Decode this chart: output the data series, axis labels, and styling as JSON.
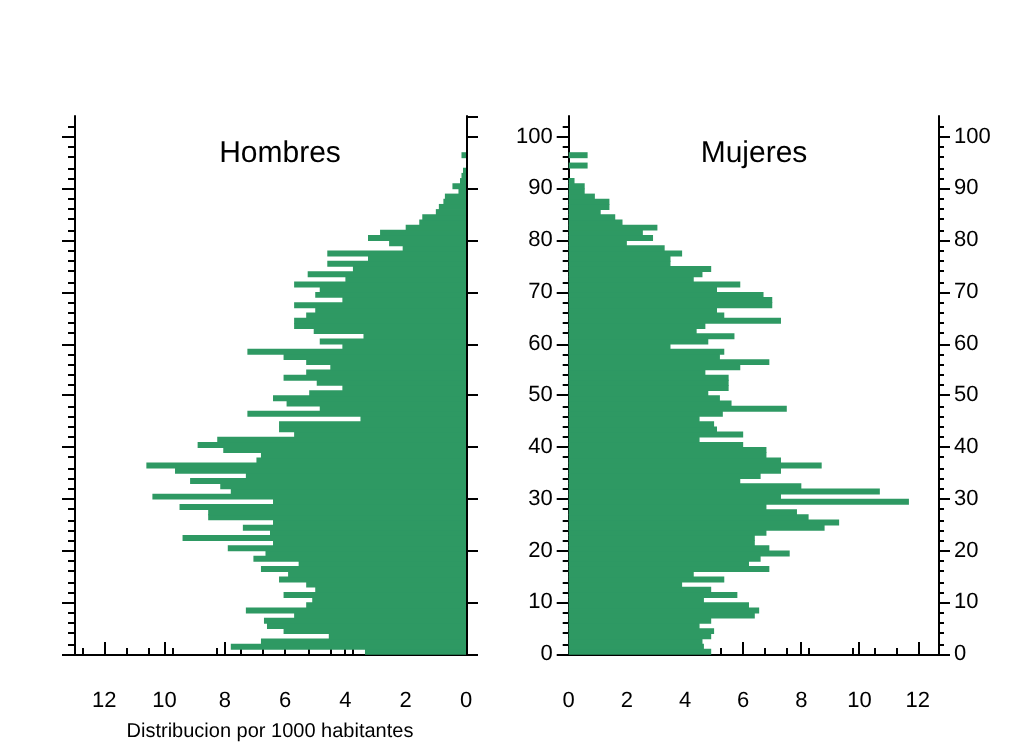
{
  "chart_data": [
    {
      "type": "bar",
      "orientation": "horizontal",
      "title": "Hombres",
      "xlabel": "Distribucion por 1000 habitantes",
      "color": "#2e9963",
      "tick_labels": "x",
      "x": [
        0,
        1,
        2,
        3,
        4,
        5,
        6,
        7,
        8,
        9,
        10,
        11,
        12,
        13,
        14,
        15,
        16,
        17,
        18,
        19,
        20,
        21,
        22,
        23,
        24,
        25,
        26,
        27,
        28,
        29,
        30,
        31,
        32,
        33,
        34,
        35,
        36,
        37,
        38,
        39,
        40,
        41,
        42,
        43,
        44,
        45,
        46,
        47,
        48,
        49,
        50,
        51,
        52,
        53,
        54,
        55,
        56,
        57,
        58,
        59,
        60,
        61,
        62,
        63,
        64,
        65,
        66,
        67,
        68,
        69,
        70,
        71,
        72,
        73,
        74,
        75,
        76,
        77,
        78,
        79,
        80,
        81,
        82,
        83,
        84,
        85,
        86,
        87,
        88,
        89,
        90,
        91,
        92,
        93,
        94,
        95,
        96
      ],
      "values": [
        3.35,
        7.8,
        6.8,
        4.55,
        6.05,
        6.6,
        6.7,
        5.7,
        7.3,
        5.3,
        5.1,
        6.05,
        5.0,
        5.3,
        6.2,
        5.9,
        6.8,
        5.55,
        7.05,
        6.65,
        7.9,
        6.4,
        9.4,
        6.5,
        7.4,
        6.4,
        8.55,
        8.55,
        9.5,
        6.4,
        10.4,
        7.8,
        8.15,
        9.15,
        7.3,
        9.65,
        10.6,
        6.95,
        6.8,
        8.05,
        8.9,
        8.25,
        5.7,
        6.2,
        6.2,
        3.5,
        7.25,
        4.85,
        5.95,
        6.4,
        5.2,
        4.1,
        4.95,
        6.05,
        5.3,
        4.5,
        5.3,
        6.05,
        7.25,
        4.1,
        4.85,
        3.4,
        5.05,
        5.7,
        5.7,
        5.3,
        5.0,
        5.7,
        4.1,
        5.0,
        4.85,
        5.7,
        4.0,
        5.25,
        3.75,
        4.6,
        3.25,
        4.6,
        2.1,
        2.55,
        3.25,
        2.85,
        2.0,
        1.55,
        1.45,
        1.0,
        0.9,
        0.75,
        0.7,
        0.25,
        0.45,
        0.2,
        0.15,
        0.1,
        0,
        0,
        0.15
      ],
      "xlim": [
        13,
        0
      ],
      "xticks": [
        12,
        10,
        8,
        6,
        4,
        2,
        0
      ],
      "ylim": [
        0,
        104
      ],
      "yticks": [
        0,
        10,
        20,
        30,
        40,
        50,
        60,
        70,
        80,
        90,
        100
      ]
    },
    {
      "type": "bar",
      "orientation": "horizontal",
      "title": "Mujeres",
      "color": "#2e9963",
      "x": [
        0,
        1,
        2,
        3,
        4,
        5,
        6,
        7,
        8,
        9,
        10,
        11,
        12,
        13,
        14,
        15,
        16,
        17,
        18,
        19,
        20,
        21,
        22,
        23,
        24,
        25,
        26,
        27,
        28,
        29,
        30,
        31,
        32,
        33,
        34,
        35,
        36,
        37,
        38,
        39,
        40,
        41,
        42,
        43,
        44,
        45,
        46,
        47,
        48,
        49,
        50,
        51,
        52,
        53,
        54,
        55,
        56,
        57,
        58,
        59,
        60,
        61,
        62,
        63,
        64,
        65,
        66,
        67,
        68,
        69,
        70,
        71,
        72,
        73,
        74,
        75,
        76,
        77,
        78,
        79,
        80,
        81,
        82,
        83,
        84,
        85,
        86,
        87,
        88,
        89,
        90,
        91,
        92,
        93,
        94,
        95,
        96
      ],
      "values": [
        4.9,
        4.65,
        4.6,
        4.9,
        5.0,
        4.5,
        4.9,
        6.4,
        6.55,
        6.2,
        4.65,
        5.8,
        4.9,
        3.9,
        5.35,
        4.3,
        6.9,
        6.2,
        6.6,
        7.6,
        6.9,
        6.4,
        6.4,
        6.8,
        8.8,
        9.3,
        8.25,
        7.85,
        6.8,
        11.7,
        7.3,
        10.7,
        8.0,
        5.9,
        6.6,
        7.3,
        8.7,
        7.3,
        6.8,
        6.8,
        6.0,
        4.5,
        6.0,
        5.1,
        5.0,
        4.5,
        5.3,
        7.5,
        5.6,
        5.2,
        4.8,
        5.5,
        5.5,
        5.5,
        4.7,
        5.9,
        6.9,
        5.2,
        5.35,
        3.5,
        4.8,
        5.7,
        4.4,
        4.7,
        7.3,
        5.35,
        5.1,
        7.0,
        7.0,
        6.7,
        5.1,
        5.9,
        4.3,
        4.6,
        4.9,
        3.5,
        3.5,
        3.9,
        3.3,
        2.0,
        2.9,
        2.55,
        3.05,
        1.85,
        1.6,
        1.1,
        1.4,
        1.4,
        0.9,
        0.55,
        0.55,
        0.2,
        0,
        0,
        0.65,
        0,
        0.65
      ],
      "xlim": [
        0,
        12.7
      ],
      "xticks": [
        0,
        2,
        4,
        6,
        8,
        10,
        12
      ],
      "ylim": [
        0,
        104
      ],
      "yticks": [
        0,
        10,
        20,
        30,
        40,
        50,
        60,
        70,
        80,
        90,
        100
      ],
      "y2lim": [
        0,
        104
      ],
      "y2ticks": [
        0,
        10,
        20,
        30,
        40,
        50,
        60,
        70,
        80,
        90,
        100
      ]
    }
  ]
}
